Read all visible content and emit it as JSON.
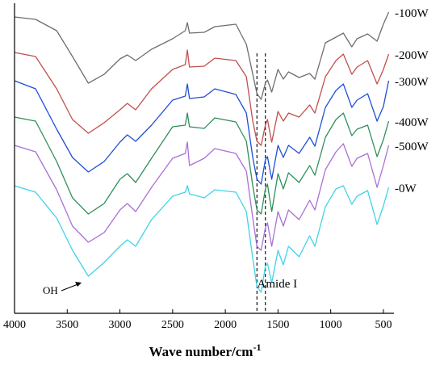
{
  "chart_data": {
    "type": "line",
    "title": "",
    "xlabel": "Wave number/cm",
    "xlabel_superscript": "-1",
    "ylabel": "",
    "xlim": [
      4000,
      400
    ],
    "x_reversed": true,
    "x_ticks": [
      4000,
      3500,
      3000,
      2500,
      2000,
      1500,
      1000,
      500
    ],
    "y_ticks_shown": false,
    "grid": false,
    "legend_style": "inline labels at right end of each curve",
    "dashed_reference_lines_x": [
      1700,
      1620
    ],
    "annotations": [
      {
        "text": "OH",
        "x": 3410,
        "arrow": true
      },
      {
        "text": "Amide I",
        "x": 1560
      }
    ],
    "series": [
      {
        "name": "-100W",
        "color": "#6e6e6e",
        "points": [
          [
            4000,
            21
          ],
          [
            3800,
            24
          ],
          [
            3600,
            38
          ],
          [
            3450,
            70
          ],
          [
            3300,
            103
          ],
          [
            3150,
            92
          ],
          [
            3000,
            73
          ],
          [
            2930,
            68
          ],
          [
            2850,
            75
          ],
          [
            2700,
            61
          ],
          [
            2500,
            48
          ],
          [
            2380,
            38
          ],
          [
            2360,
            28
          ],
          [
            2340,
            41
          ],
          [
            2200,
            40
          ],
          [
            2100,
            33
          ],
          [
            1900,
            30
          ],
          [
            1800,
            55
          ],
          [
            1700,
            116
          ],
          [
            1660,
            123
          ],
          [
            1620,
            103
          ],
          [
            1600,
            99
          ],
          [
            1560,
            114
          ],
          [
            1500,
            86
          ],
          [
            1450,
            98
          ],
          [
            1400,
            89
          ],
          [
            1300,
            96
          ],
          [
            1200,
            91
          ],
          [
            1150,
            98
          ],
          [
            1050,
            53
          ],
          [
            950,
            46
          ],
          [
            880,
            41
          ],
          [
            800,
            58
          ],
          [
            750,
            48
          ],
          [
            650,
            42
          ],
          [
            560,
            51
          ],
          [
            500,
            30
          ],
          [
            450,
            15
          ]
        ]
      },
      {
        "name": "-200W",
        "color": "#c0504d",
        "points": [
          [
            4000,
            65
          ],
          [
            3800,
            70
          ],
          [
            3600,
            110
          ],
          [
            3450,
            148
          ],
          [
            3300,
            165
          ],
          [
            3150,
            152
          ],
          [
            3000,
            136
          ],
          [
            2930,
            128
          ],
          [
            2850,
            136
          ],
          [
            2700,
            110
          ],
          [
            2500,
            86
          ],
          [
            2380,
            80
          ],
          [
            2360,
            62
          ],
          [
            2340,
            83
          ],
          [
            2200,
            82
          ],
          [
            2100,
            72
          ],
          [
            1900,
            75
          ],
          [
            1800,
            95
          ],
          [
            1740,
            150
          ],
          [
            1700,
            175
          ],
          [
            1660,
            180
          ],
          [
            1620,
            155
          ],
          [
            1600,
            148
          ],
          [
            1560,
            176
          ],
          [
            1500,
            138
          ],
          [
            1450,
            150
          ],
          [
            1400,
            140
          ],
          [
            1300,
            145
          ],
          [
            1200,
            130
          ],
          [
            1150,
            140
          ],
          [
            1050,
            95
          ],
          [
            950,
            75
          ],
          [
            880,
            67
          ],
          [
            800,
            92
          ],
          [
            750,
            83
          ],
          [
            650,
            75
          ],
          [
            560,
            104
          ],
          [
            500,
            86
          ],
          [
            450,
            67
          ]
        ]
      },
      {
        "name": "-300W",
        "color": "#1f4fd6",
        "points": [
          [
            4000,
            100
          ],
          [
            3800,
            110
          ],
          [
            3600,
            160
          ],
          [
            3450,
            195
          ],
          [
            3300,
            213
          ],
          [
            3150,
            200
          ],
          [
            3000,
            176
          ],
          [
            2930,
            167
          ],
          [
            2850,
            175
          ],
          [
            2700,
            155
          ],
          [
            2500,
            124
          ],
          [
            2380,
            119
          ],
          [
            2360,
            104
          ],
          [
            2340,
            122
          ],
          [
            2200,
            120
          ],
          [
            2100,
            110
          ],
          [
            1900,
            117
          ],
          [
            1800,
            140
          ],
          [
            1740,
            195
          ],
          [
            1700,
            222
          ],
          [
            1660,
            228
          ],
          [
            1620,
            198
          ],
          [
            1600,
            194
          ],
          [
            1560,
            222
          ],
          [
            1500,
            180
          ],
          [
            1450,
            195
          ],
          [
            1400,
            180
          ],
          [
            1300,
            190
          ],
          [
            1200,
            170
          ],
          [
            1150,
            181
          ],
          [
            1050,
            133
          ],
          [
            950,
            112
          ],
          [
            880,
            104
          ],
          [
            800,
            133
          ],
          [
            750,
            124
          ],
          [
            650,
            116
          ],
          [
            560,
            150
          ],
          [
            500,
            132
          ],
          [
            450,
            100
          ]
        ]
      },
      {
        "name": "-400W",
        "color": "#2f8f5b",
        "points": [
          [
            4000,
            145
          ],
          [
            3800,
            150
          ],
          [
            3600,
            200
          ],
          [
            3450,
            245
          ],
          [
            3300,
            265
          ],
          [
            3150,
            252
          ],
          [
            3000,
            222
          ],
          [
            2930,
            215
          ],
          [
            2850,
            226
          ],
          [
            2700,
            196
          ],
          [
            2500,
            157
          ],
          [
            2380,
            155
          ],
          [
            2360,
            140
          ],
          [
            2340,
            157
          ],
          [
            2200,
            159
          ],
          [
            2100,
            146
          ],
          [
            1900,
            151
          ],
          [
            1800,
            175
          ],
          [
            1740,
            230
          ],
          [
            1700,
            260
          ],
          [
            1660,
            265
          ],
          [
            1620,
            234
          ],
          [
            1600,
            228
          ],
          [
            1560,
            262
          ],
          [
            1500,
            215
          ],
          [
            1450,
            234
          ],
          [
            1400,
            214
          ],
          [
            1300,
            226
          ],
          [
            1200,
            205
          ],
          [
            1150,
            217
          ],
          [
            1050,
            170
          ],
          [
            950,
            148
          ],
          [
            880,
            140
          ],
          [
            800,
            168
          ],
          [
            750,
            160
          ],
          [
            650,
            155
          ],
          [
            560,
            194
          ],
          [
            500,
            173
          ],
          [
            450,
            150
          ]
        ]
      },
      {
        "name": "-500W",
        "color": "#a970d6",
        "points": [
          [
            4000,
            180
          ],
          [
            3800,
            188
          ],
          [
            3600,
            235
          ],
          [
            3450,
            280
          ],
          [
            3300,
            300
          ],
          [
            3150,
            288
          ],
          [
            3000,
            260
          ],
          [
            2930,
            252
          ],
          [
            2850,
            262
          ],
          [
            2700,
            232
          ],
          [
            2500,
            196
          ],
          [
            2380,
            190
          ],
          [
            2360,
            176
          ],
          [
            2340,
            205
          ],
          [
            2200,
            196
          ],
          [
            2100,
            184
          ],
          [
            1900,
            190
          ],
          [
            1800,
            212
          ],
          [
            1740,
            270
          ],
          [
            1700,
            305
          ],
          [
            1660,
            310
          ],
          [
            1620,
            282
          ],
          [
            1600,
            276
          ],
          [
            1560,
            305
          ],
          [
            1500,
            262
          ],
          [
            1450,
            280
          ],
          [
            1400,
            260
          ],
          [
            1300,
            272
          ],
          [
            1200,
            248
          ],
          [
            1150,
            260
          ],
          [
            1050,
            210
          ],
          [
            950,
            188
          ],
          [
            880,
            178
          ],
          [
            800,
            206
          ],
          [
            750,
            196
          ],
          [
            650,
            190
          ],
          [
            560,
            232
          ],
          [
            500,
            205
          ],
          [
            450,
            180
          ]
        ]
      },
      {
        "name": "-0W",
        "color": "#40d3e8",
        "points": [
          [
            4000,
            230
          ],
          [
            3800,
            238
          ],
          [
            3600,
            270
          ],
          [
            3450,
            310
          ],
          [
            3300,
            342
          ],
          [
            3150,
            325
          ],
          [
            3000,
            305
          ],
          [
            2930,
            297
          ],
          [
            2850,
            305
          ],
          [
            2700,
            272
          ],
          [
            2500,
            243
          ],
          [
            2380,
            238
          ],
          [
            2360,
            230
          ],
          [
            2340,
            240
          ],
          [
            2200,
            245
          ],
          [
            2100,
            235
          ],
          [
            1900,
            238
          ],
          [
            1800,
            262
          ],
          [
            1740,
            320
          ],
          [
            1700,
            355
          ],
          [
            1660,
            362
          ],
          [
            1620,
            330
          ],
          [
            1600,
            326
          ],
          [
            1560,
            350
          ],
          [
            1500,
            310
          ],
          [
            1450,
            328
          ],
          [
            1400,
            305
          ],
          [
            1300,
            318
          ],
          [
            1200,
            292
          ],
          [
            1150,
            305
          ],
          [
            1050,
            256
          ],
          [
            950,
            234
          ],
          [
            880,
            230
          ],
          [
            800,
            253
          ],
          [
            750,
            243
          ],
          [
            650,
            236
          ],
          [
            560,
            278
          ],
          [
            500,
            255
          ],
          [
            450,
            232
          ]
        ]
      }
    ]
  }
}
